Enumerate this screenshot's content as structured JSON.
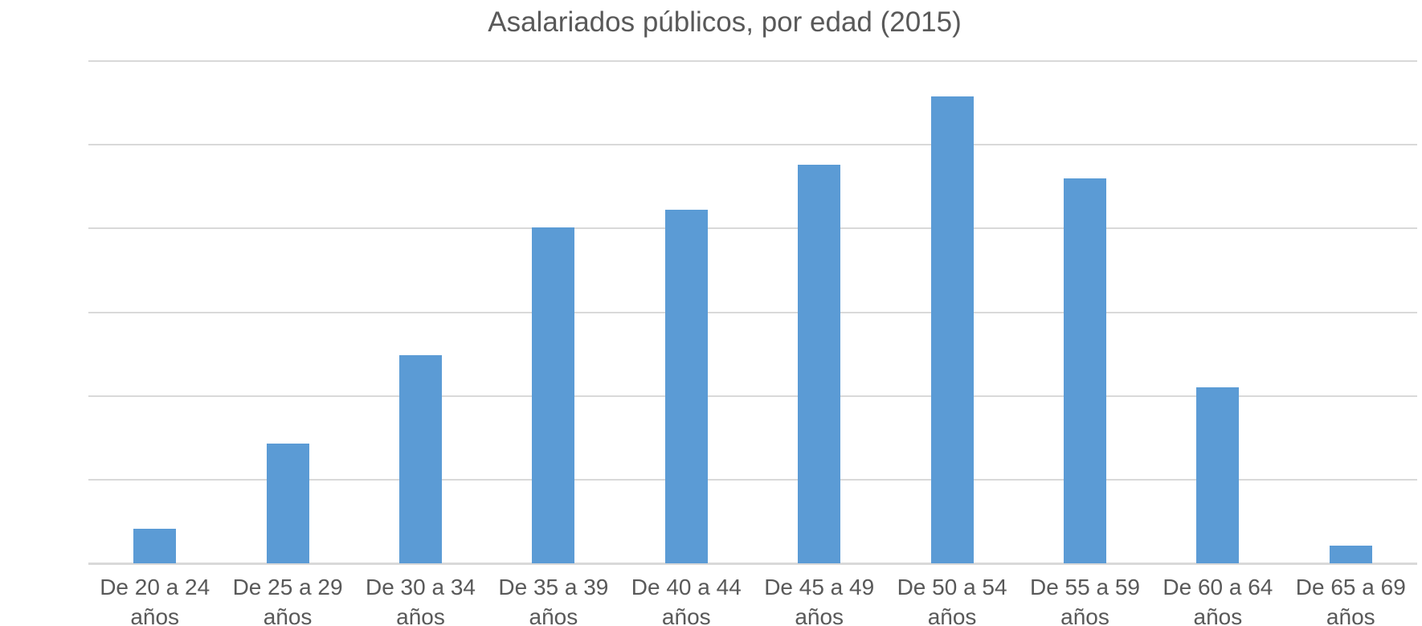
{
  "chart_data": {
    "type": "bar",
    "title": "Asalariados públicos, por edad (2015)",
    "categories": [
      "De 20 a 24 años",
      "De 25 a 29 años",
      "De 30 a 34 años",
      "De 35 a 39 años",
      "De 40 a 44 años",
      "De 45 a 49 años",
      "De 50 a 54 años",
      "De 55 a 59 años",
      "De 60 a 64 años",
      "De 65 a 69 años"
    ],
    "values": [
      41000,
      143000,
      249000,
      401000,
      422000,
      476000,
      558000,
      460000,
      210000,
      21000
    ],
    "xlabel": "",
    "ylabel": "",
    "ylim": [
      0,
      600000
    ],
    "ytick_step": 100000,
    "yticks": [
      600000,
      500000,
      400000,
      300000,
      200000,
      100000,
      0
    ],
    "grid": true,
    "legend_position": "none"
  },
  "colors": {
    "bar": "#5B9BD5",
    "text": "#595959",
    "gridline": "#D9D9D9",
    "axis_line": "#D9D9D9",
    "background": "#FFFFFF"
  }
}
